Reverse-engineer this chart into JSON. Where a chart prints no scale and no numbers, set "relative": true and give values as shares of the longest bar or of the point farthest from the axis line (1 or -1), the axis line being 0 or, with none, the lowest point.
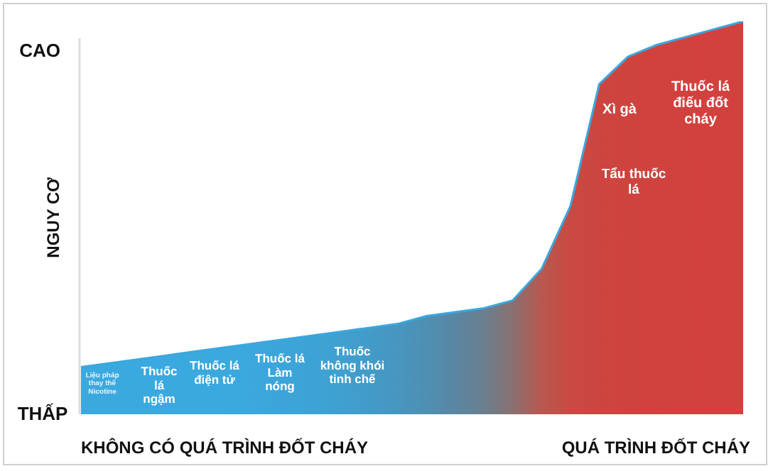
{
  "chart_data": {
    "type": "area",
    "relative": true,
    "ylabel": "NGUY CƠ",
    "categories": [
      null,
      null,
      null,
      null,
      null,
      null,
      null,
      null,
      null,
      null,
      null,
      null,
      null,
      null,
      null,
      null,
      null,
      null,
      null,
      null,
      null,
      null,
      null,
      null
    ],
    "series": [
      {
        "color": "#3ba7dd",
        "colors": [
          "#3aa9e0",
          "#3aa9e0",
          "#3aa9e0",
          "#3aa9e0",
          "#3aa9e0",
          "#3aa9e0",
          "#3ba7dd",
          "#3ca5d9",
          "#3da3d5",
          "#3fa0d0",
          "#429bc8",
          "#4796bf",
          "#4f8fb3",
          "#5a86a2",
          "#6a7f8e",
          "#8a7070",
          "#b85850",
          "#c94a42",
          "#cd4540",
          "#cf433e",
          "#d0423e",
          "#d1413e",
          "#d2413e",
          "#d3403e"
        ],
        "values": [
          0.12,
          0.13,
          0.14,
          0.15,
          0.16,
          0.17,
          0.18,
          0.19,
          0.2,
          0.21,
          0.22,
          0.23,
          0.25,
          0.26,
          0.27,
          0.29,
          0.37,
          0.53,
          0.84,
          0.91,
          0.94,
          0.96,
          0.98,
          1
        ]
      }
    ],
    "legend": false,
    "annotations": [
      "CAO",
      "THẤP",
      "KHÔNG CÓ QUÁ TRÌNH ĐỐT CHÁY",
      "QUÁ TRÌNH ĐỐT CHÁY",
      "Liệu pháp thay thế Nicotine",
      "Thuốc lá ngậm",
      "Thuốc lá điện tử",
      "Thuốc lá Làm nóng",
      "Thuốc không khói tinh chế",
      "Tẩu thuốc lá",
      "Xì gà",
      "Thuốc lá điếu đốt cháy"
    ]
  }
}
